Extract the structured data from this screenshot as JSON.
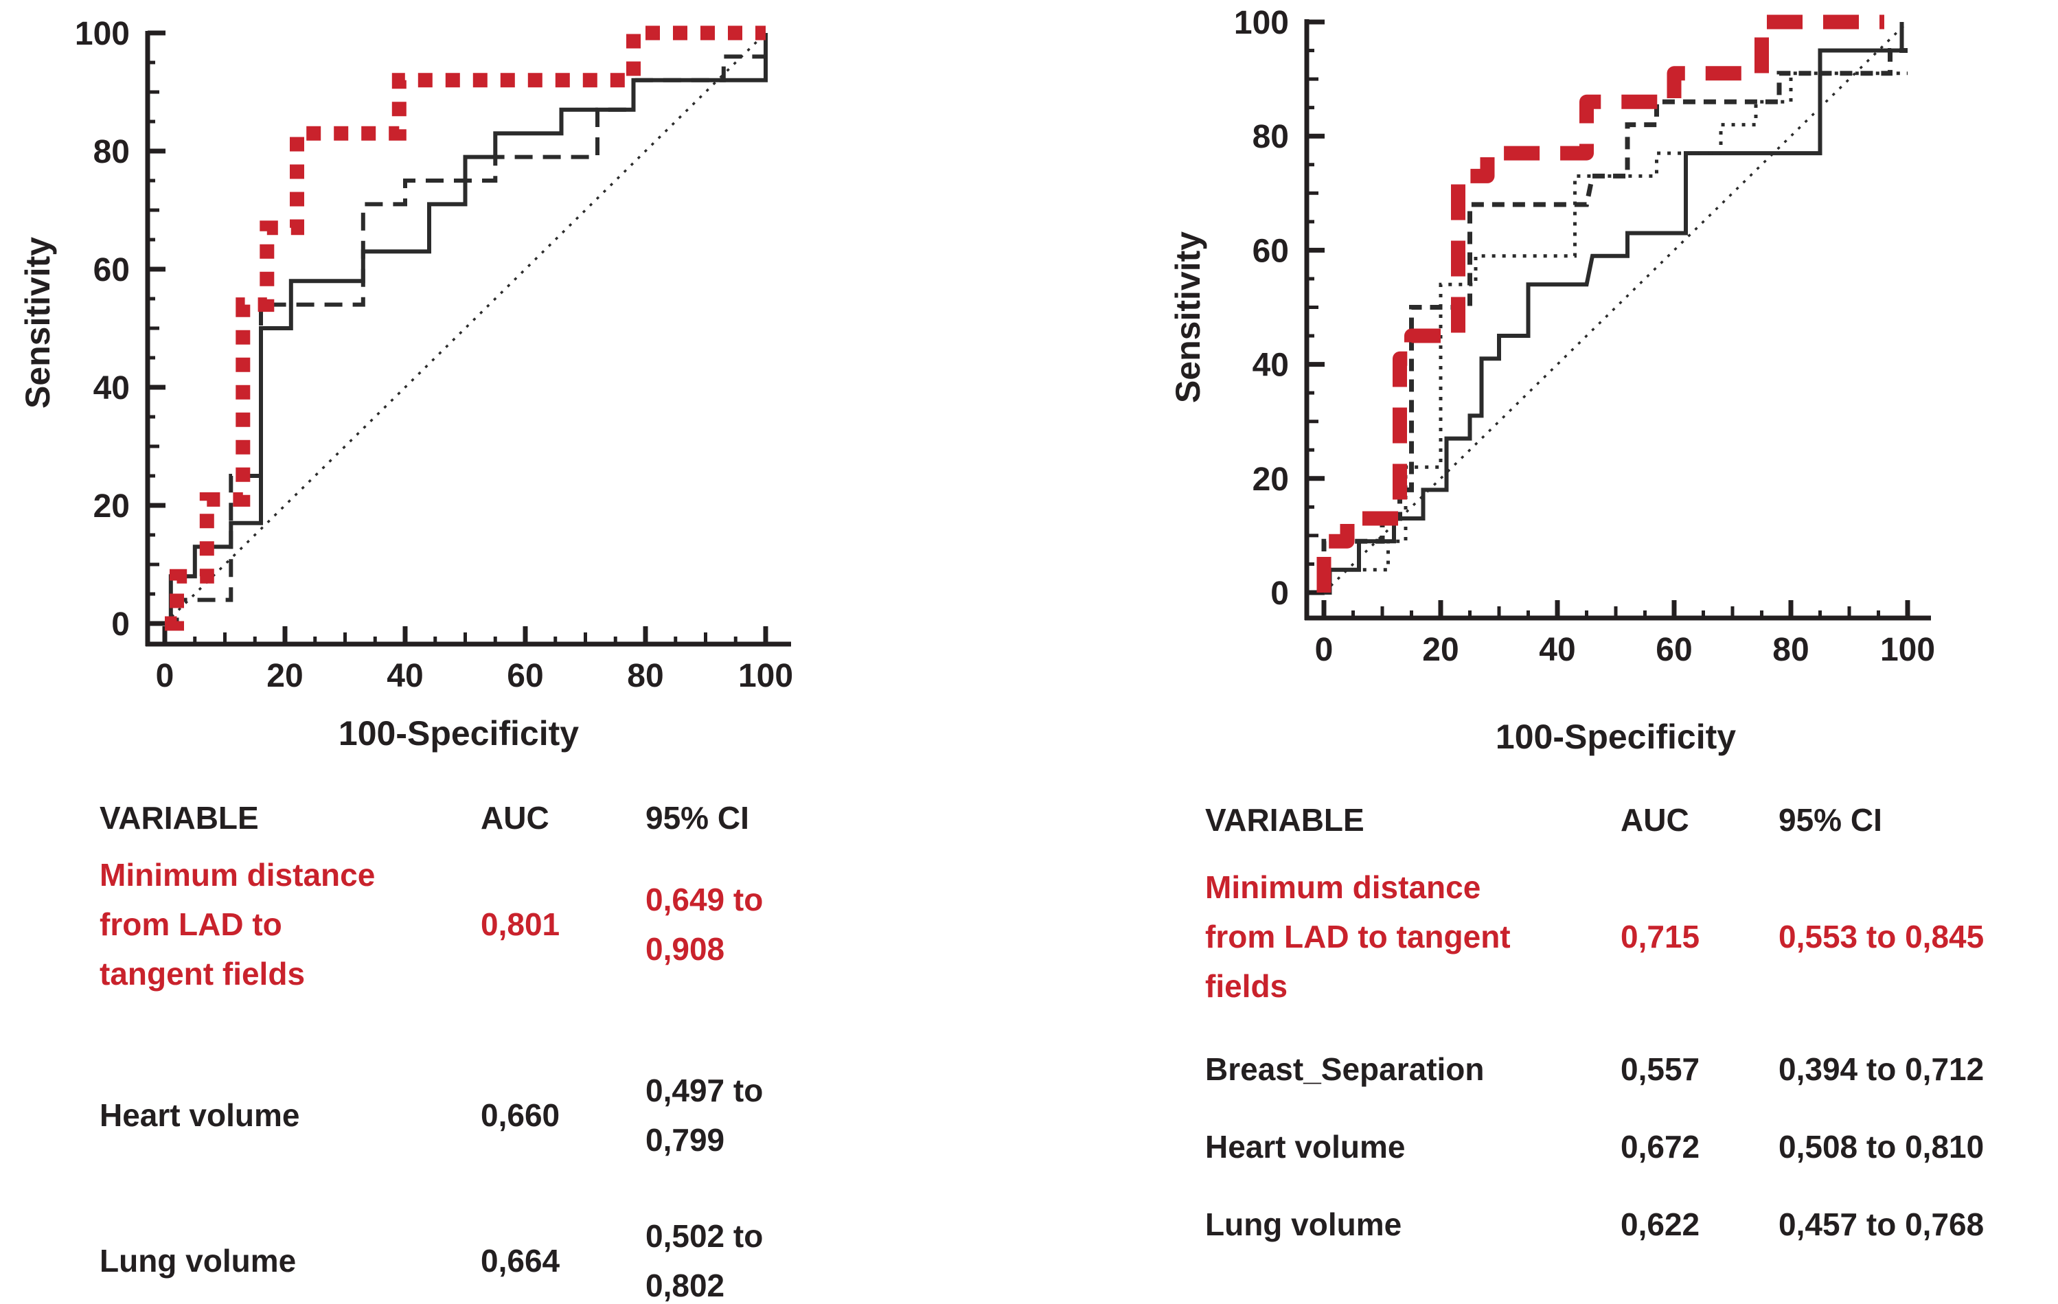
{
  "figure": {
    "background": "#ffffff",
    "text_color": "#231f20",
    "accent_red": "#c9222c"
  },
  "chart_data": [
    {
      "type": "line",
      "subtype": "roc-step-curves",
      "title": "",
      "xlabel": "100-Specificity",
      "ylabel": "Sensitivity",
      "xlim": [
        0,
        100
      ],
      "ylim": [
        0,
        100
      ],
      "x_major_ticks": [
        0,
        20,
        40,
        60,
        80,
        100
      ],
      "y_major_ticks": [
        0,
        20,
        40,
        60,
        80,
        100
      ],
      "minor_tick_step": 5,
      "grid": false,
      "legend_position": "none",
      "series": [
        {
          "name": "Reference diagonal",
          "style": "dotted-thin",
          "color": "#2b2b2b",
          "points": [
            [
              0,
              0
            ],
            [
              100,
              100
            ]
          ]
        },
        {
          "name": "Black solid curve (unlabeled)",
          "style": "solid",
          "color": "#2b2b2b",
          "points": [
            [
              0,
              0
            ],
            [
              1,
              0
            ],
            [
              1,
              8
            ],
            [
              5,
              8
            ],
            [
              5,
              13
            ],
            [
              11,
              13
            ],
            [
              11,
              17
            ],
            [
              16,
              17
            ],
            [
              16,
              50
            ],
            [
              21,
              50
            ],
            [
              21,
              58
            ],
            [
              33,
              58
            ],
            [
              33,
              63
            ],
            [
              44,
              63
            ],
            [
              44,
              71
            ],
            [
              50,
              71
            ],
            [
              50,
              79
            ],
            [
              55,
              79
            ],
            [
              55,
              83
            ],
            [
              66,
              83
            ],
            [
              66,
              87
            ],
            [
              78,
              87
            ],
            [
              78,
              92
            ],
            [
              100,
              92
            ],
            [
              100,
              100
            ]
          ]
        },
        {
          "name": "Black dashed curve (unlabeled)",
          "style": "dashed",
          "color": "#2b2b2b",
          "points": [
            [
              0,
              0
            ],
            [
              2,
              0
            ],
            [
              2,
              4
            ],
            [
              11,
              4
            ],
            [
              11,
              25
            ],
            [
              16,
              25
            ],
            [
              16,
              54
            ],
            [
              33,
              54
            ],
            [
              33,
              71
            ],
            [
              40,
              71
            ],
            [
              40,
              75
            ],
            [
              55,
              75
            ],
            [
              55,
              79
            ],
            [
              72,
              79
            ],
            [
              72,
              87
            ],
            [
              78,
              87
            ],
            [
              78,
              92
            ],
            [
              93,
              92
            ],
            [
              93,
              96
            ],
            [
              100,
              96
            ],
            [
              100,
              100
            ]
          ]
        },
        {
          "name": "Minimum distance from LAD to tangent fields",
          "style": "dotted-thick",
          "color": "#c9222c",
          "points": [
            [
              0,
              0
            ],
            [
              2,
              0
            ],
            [
              2,
              8
            ],
            [
              7,
              8
            ],
            [
              7,
              21
            ],
            [
              13,
              21
            ],
            [
              13,
              54
            ],
            [
              17,
              54
            ],
            [
              17,
              67
            ],
            [
              22,
              67
            ],
            [
              22,
              83
            ],
            [
              39,
              83
            ],
            [
              39,
              92
            ],
            [
              78,
              92
            ],
            [
              78,
              100
            ],
            [
              100,
              100
            ]
          ]
        }
      ],
      "auc_table": {
        "headers": [
          "VARIABLE",
          "AUC",
          "95% CI"
        ],
        "rows": [
          {
            "variable": "Minimum distance from LAD to tangent fields",
            "auc": "0,801",
            "ci": "0,649 to 0,908",
            "highlighted": true
          },
          {
            "variable": "Heart volume",
            "auc": "0,660",
            "ci": "0,497 to 0,799",
            "highlighted": false
          },
          {
            "variable": "Lung volume",
            "auc": "0,664",
            "ci": "0,502 to 0,802",
            "highlighted": false
          }
        ]
      }
    },
    {
      "type": "line",
      "subtype": "roc-step-curves",
      "title": "",
      "xlabel": "100-Specificity",
      "ylabel": "Sensitivity",
      "xlim": [
        0,
        100
      ],
      "ylim": [
        0,
        100
      ],
      "x_major_ticks": [
        0,
        20,
        40,
        60,
        80,
        100
      ],
      "y_major_ticks": [
        0,
        20,
        40,
        60,
        80,
        100
      ],
      "minor_tick_step": 5,
      "grid": false,
      "legend_position": "none",
      "series": [
        {
          "name": "Reference diagonal",
          "style": "dotted-thin",
          "color": "#2b2b2b",
          "points": [
            [
              0,
              0
            ],
            [
              100,
              100
            ]
          ]
        },
        {
          "name": "Black solid curve (unlabeled)",
          "style": "solid",
          "color": "#2b2b2b",
          "points": [
            [
              0,
              0
            ],
            [
              1,
              0
            ],
            [
              1,
              4
            ],
            [
              6,
              4
            ],
            [
              6,
              9
            ],
            [
              12,
              9
            ],
            [
              12,
              13
            ],
            [
              17,
              13
            ],
            [
              17,
              18
            ],
            [
              21,
              18
            ],
            [
              21,
              27
            ],
            [
              25,
              27
            ],
            [
              25,
              31
            ],
            [
              27,
              31
            ],
            [
              27,
              41
            ],
            [
              30,
              41
            ],
            [
              30,
              45
            ],
            [
              35,
              45
            ],
            [
              35,
              54
            ],
            [
              45,
              54
            ],
            [
              46,
              59
            ],
            [
              52,
              59
            ],
            [
              52,
              63
            ],
            [
              62,
              63
            ],
            [
              62,
              77
            ],
            [
              85,
              77
            ],
            [
              85,
              95
            ],
            [
              99,
              95
            ],
            [
              99,
              100
            ]
          ]
        },
        {
          "name": "Black dotted curve (unlabeled)",
          "style": "dotted",
          "color": "#2b2b2b",
          "points": [
            [
              0,
              0
            ],
            [
              0,
              4
            ],
            [
              11,
              4
            ],
            [
              11,
              9
            ],
            [
              14,
              9
            ],
            [
              14,
              22
            ],
            [
              20,
              22
            ],
            [
              20,
              54
            ],
            [
              26,
              54
            ],
            [
              26,
              59
            ],
            [
              43,
              59
            ],
            [
              43,
              73
            ],
            [
              57,
              73
            ],
            [
              57,
              77
            ],
            [
              68,
              77
            ],
            [
              68,
              82
            ],
            [
              74,
              82
            ],
            [
              74,
              86
            ],
            [
              80,
              86
            ],
            [
              80,
              91
            ],
            [
              100,
              91
            ]
          ]
        },
        {
          "name": "Black short-dashed curve (unlabeled)",
          "style": "dashed-short",
          "color": "#2b2b2b",
          "points": [
            [
              0,
              0
            ],
            [
              0,
              9
            ],
            [
              10,
              9
            ],
            [
              10,
              13
            ],
            [
              13,
              13
            ],
            [
              13,
              18
            ],
            [
              15,
              18
            ],
            [
              15,
              50
            ],
            [
              25,
              50
            ],
            [
              25,
              68
            ],
            [
              45,
              68
            ],
            [
              46,
              73
            ],
            [
              52,
              73
            ],
            [
              52,
              82
            ],
            [
              57,
              82
            ],
            [
              57,
              86
            ],
            [
              78,
              86
            ],
            [
              78,
              91
            ],
            [
              97,
              91
            ],
            [
              97,
              95
            ],
            [
              100,
              95
            ]
          ]
        },
        {
          "name": "Minimum distance from LAD to tangent fields",
          "style": "dashed-thick",
          "color": "#c9222c",
          "points": [
            [
              0,
              0
            ],
            [
              0,
              9
            ],
            [
              4,
              9
            ],
            [
              4,
              13
            ],
            [
              13,
              13
            ],
            [
              13,
              41
            ],
            [
              15,
              41
            ],
            [
              15,
              45
            ],
            [
              23,
              45
            ],
            [
              23,
              73
            ],
            [
              28,
              73
            ],
            [
              28,
              77
            ],
            [
              45,
              77
            ],
            [
              45,
              86
            ],
            [
              60,
              86
            ],
            [
              60,
              91
            ],
            [
              75,
              91
            ],
            [
              75,
              100
            ],
            [
              96,
              100
            ]
          ]
        }
      ],
      "auc_table": {
        "headers": [
          "VARIABLE",
          "AUC",
          "95% CI"
        ],
        "rows": [
          {
            "variable": "Minimum distance from LAD to tangent fields",
            "auc": "0,715",
            "ci": "0,553 to 0,845",
            "highlighted": true
          },
          {
            "variable": "Breast_Separation",
            "auc": "0,557",
            "ci": "0,394 to 0,712",
            "highlighted": false
          },
          {
            "variable": "Heart volume",
            "auc": "0,672",
            "ci": "0,508 to 0,810",
            "highlighted": false
          },
          {
            "variable": "Lung volume",
            "auc": "0,622",
            "ci": "0,457 to 0,768",
            "highlighted": false
          }
        ]
      }
    }
  ]
}
